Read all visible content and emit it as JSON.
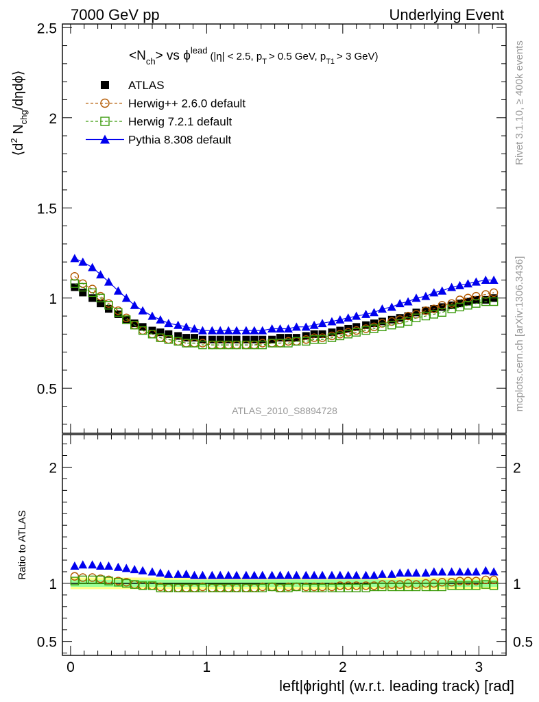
{
  "header": {
    "left": "7000 GeV pp",
    "right": "Underlying Event"
  },
  "title_parts": {
    "n": "<N",
    "ch_sub": "ch",
    "vs": "> vs ϕ",
    "lead_sup": "lead",
    "cuts_a": "(|η| < 2.5, p",
    "t_sub": "T",
    "cuts_b": "> 0.5 GeV, p",
    "t1_sub": "T1",
    "cuts_c": "> 3 GeV)"
  },
  "ylabel_parts": {
    "open": "⟨d",
    "sup2": "2",
    "n": " N",
    "chg_sub": "chg",
    "rest": "/dηdϕ⟩"
  },
  "side_texts": {
    "rivet": "Rivet 3.1.10, ≥ 400k events",
    "mcplots": "mcplots.cern.ch [arXiv:1306.3436]"
  },
  "analysis_label": "ATLAS_2010_S8894728",
  "ratio_ylabel": "Ratio to ATLAS",
  "xlabel": "left|ϕright| (w.r.t. leading track) [rad]",
  "chart_data": [
    {
      "type": "scatter",
      "panel": "main",
      "xlim": [
        -0.06,
        3.2
      ],
      "ylim": [
        0.25,
        2.52
      ],
      "x_ticks": [
        0,
        1,
        2,
        3
      ],
      "x_tick_labels": [
        "0",
        "1",
        "2",
        "3"
      ],
      "y_ticks": [
        0.5,
        1,
        1.5,
        2,
        2.5
      ],
      "y_tick_labels": [
        "0.5",
        "1",
        "1.5",
        "2",
        "2.5"
      ],
      "legend_placement": "top-left",
      "x": [
        0.03,
        0.09,
        0.16,
        0.22,
        0.28,
        0.35,
        0.41,
        0.47,
        0.53,
        0.6,
        0.66,
        0.72,
        0.79,
        0.85,
        0.91,
        0.97,
        1.04,
        1.1,
        1.16,
        1.22,
        1.29,
        1.35,
        1.41,
        1.48,
        1.54,
        1.6,
        1.66,
        1.73,
        1.79,
        1.85,
        1.92,
        1.98,
        2.04,
        2.1,
        2.17,
        2.23,
        2.29,
        2.36,
        2.42,
        2.48,
        2.54,
        2.61,
        2.67,
        2.73,
        2.8,
        2.86,
        2.92,
        2.98,
        3.05,
        3.11
      ],
      "series": [
        {
          "name": "ATLAS",
          "marker": "filled-square",
          "color": "#000000",
          "values": [
            1.06,
            1.03,
            1.0,
            0.97,
            0.94,
            0.91,
            0.88,
            0.86,
            0.84,
            0.82,
            0.81,
            0.8,
            0.79,
            0.78,
            0.78,
            0.77,
            0.77,
            0.77,
            0.77,
            0.77,
            0.77,
            0.77,
            0.77,
            0.77,
            0.78,
            0.78,
            0.78,
            0.79,
            0.8,
            0.8,
            0.81,
            0.82,
            0.83,
            0.84,
            0.85,
            0.86,
            0.87,
            0.88,
            0.89,
            0.9,
            0.92,
            0.93,
            0.94,
            0.95,
            0.96,
            0.97,
            0.98,
            0.99,
            0.99,
            1.0
          ]
        },
        {
          "name": "Herwig++ 2.6.0 default",
          "marker": "open-circle",
          "line": "dashed",
          "color": "#b35900",
          "values": [
            1.12,
            1.08,
            1.05,
            1.01,
            0.97,
            0.93,
            0.89,
            0.85,
            0.82,
            0.8,
            0.78,
            0.77,
            0.76,
            0.75,
            0.75,
            0.75,
            0.74,
            0.74,
            0.74,
            0.74,
            0.74,
            0.74,
            0.75,
            0.75,
            0.75,
            0.76,
            0.76,
            0.77,
            0.78,
            0.78,
            0.79,
            0.8,
            0.81,
            0.82,
            0.83,
            0.84,
            0.86,
            0.87,
            0.88,
            0.9,
            0.91,
            0.93,
            0.94,
            0.96,
            0.97,
            0.99,
            1.0,
            1.01,
            1.02,
            1.03
          ]
        },
        {
          "name": "Herwig 7.2.1 default",
          "marker": "open-square",
          "line": "dashed",
          "color": "#3a9a0a",
          "values": [
            1.08,
            1.06,
            1.03,
            1.0,
            0.96,
            0.92,
            0.88,
            0.85,
            0.82,
            0.8,
            0.78,
            0.77,
            0.76,
            0.75,
            0.75,
            0.74,
            0.74,
            0.74,
            0.74,
            0.74,
            0.74,
            0.74,
            0.74,
            0.75,
            0.75,
            0.75,
            0.76,
            0.76,
            0.77,
            0.77,
            0.78,
            0.79,
            0.8,
            0.81,
            0.82,
            0.83,
            0.84,
            0.85,
            0.86,
            0.87,
            0.89,
            0.9,
            0.91,
            0.92,
            0.94,
            0.95,
            0.96,
            0.97,
            0.98,
            0.98
          ]
        },
        {
          "name": "Pythia 8.308 default",
          "marker": "filled-triangle",
          "line": "solid",
          "color": "#0000ee",
          "values": [
            1.22,
            1.2,
            1.17,
            1.13,
            1.09,
            1.04,
            1.0,
            0.96,
            0.93,
            0.9,
            0.88,
            0.86,
            0.85,
            0.84,
            0.83,
            0.82,
            0.82,
            0.82,
            0.82,
            0.82,
            0.82,
            0.82,
            0.82,
            0.83,
            0.83,
            0.83,
            0.84,
            0.84,
            0.85,
            0.86,
            0.87,
            0.88,
            0.89,
            0.9,
            0.91,
            0.92,
            0.94,
            0.95,
            0.97,
            0.98,
            1.0,
            1.01,
            1.03,
            1.04,
            1.06,
            1.07,
            1.08,
            1.09,
            1.1,
            1.1
          ]
        }
      ]
    },
    {
      "type": "scatter",
      "panel": "ratio",
      "xlim": [
        -0.06,
        3.2
      ],
      "ylim": [
        0.38,
        2.28
      ],
      "y_ticks": [
        0.5,
        1,
        2
      ],
      "y_tick_labels": [
        "0.5",
        "1",
        "2"
      ],
      "reference_line": 1,
      "band_inner": [
        0.97,
        1.03
      ],
      "band_outer": [
        0.95,
        1.05
      ],
      "band_colors": [
        "#99ff99",
        "#ffff88"
      ],
      "x": [
        0.03,
        0.09,
        0.16,
        0.22,
        0.28,
        0.35,
        0.41,
        0.47,
        0.53,
        0.6,
        0.66,
        0.72,
        0.79,
        0.85,
        0.91,
        0.97,
        1.04,
        1.1,
        1.16,
        1.22,
        1.29,
        1.35,
        1.41,
        1.48,
        1.54,
        1.6,
        1.66,
        1.73,
        1.79,
        1.85,
        1.92,
        1.98,
        2.04,
        2.1,
        2.17,
        2.23,
        2.29,
        2.36,
        2.42,
        2.48,
        2.54,
        2.61,
        2.67,
        2.73,
        2.8,
        2.86,
        2.92,
        2.98,
        3.05,
        3.11
      ],
      "series": [
        {
          "name": "Herwig++ 2.6.0 default",
          "marker": "open-circle",
          "color": "#b35900",
          "values": [
            1.06,
            1.05,
            1.05,
            1.04,
            1.03,
            1.02,
            1.01,
            0.99,
            0.98,
            0.98,
            0.97,
            0.96,
            0.96,
            0.96,
            0.96,
            0.97,
            0.96,
            0.96,
            0.96,
            0.96,
            0.96,
            0.96,
            0.97,
            0.97,
            0.96,
            0.97,
            0.97,
            0.97,
            0.97,
            0.97,
            0.97,
            0.98,
            0.98,
            0.98,
            0.98,
            0.98,
            0.99,
            0.99,
            0.99,
            1.0,
            0.99,
            1.0,
            1.0,
            1.01,
            1.01,
            1.02,
            1.02,
            1.02,
            1.03,
            1.03
          ]
        },
        {
          "name": "Herwig 7.2.1 default",
          "marker": "open-square",
          "color": "#3a9a0a",
          "values": [
            1.02,
            1.03,
            1.03,
            1.03,
            1.02,
            1.01,
            1.0,
            0.99,
            0.98,
            0.98,
            0.96,
            0.96,
            0.96,
            0.96,
            0.96,
            0.96,
            0.96,
            0.96,
            0.96,
            0.96,
            0.96,
            0.96,
            0.96,
            0.97,
            0.96,
            0.96,
            0.97,
            0.96,
            0.96,
            0.96,
            0.96,
            0.96,
            0.96,
            0.96,
            0.96,
            0.97,
            0.97,
            0.97,
            0.97,
            0.97,
            0.97,
            0.97,
            0.97,
            0.97,
            0.98,
            0.98,
            0.98,
            0.98,
            0.99,
            0.98
          ]
        },
        {
          "name": "Pythia 8.308 default",
          "marker": "filled-triangle",
          "color": "#0000ee",
          "values": [
            1.15,
            1.16,
            1.16,
            1.15,
            1.15,
            1.14,
            1.13,
            1.12,
            1.11,
            1.1,
            1.09,
            1.08,
            1.08,
            1.08,
            1.07,
            1.07,
            1.07,
            1.07,
            1.07,
            1.07,
            1.07,
            1.07,
            1.07,
            1.07,
            1.07,
            1.07,
            1.07,
            1.07,
            1.07,
            1.07,
            1.07,
            1.07,
            1.07,
            1.07,
            1.07,
            1.07,
            1.08,
            1.08,
            1.09,
            1.09,
            1.09,
            1.09,
            1.1,
            1.1,
            1.1,
            1.1,
            1.1,
            1.1,
            1.11,
            1.1
          ]
        }
      ]
    }
  ]
}
